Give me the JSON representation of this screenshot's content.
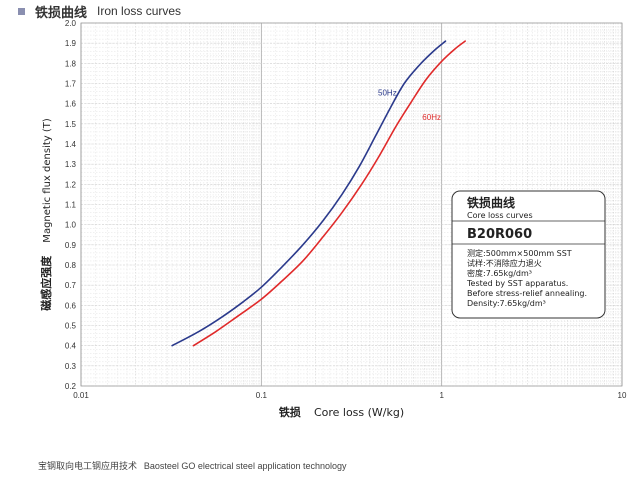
{
  "header": {
    "title_zh": "铁损曲线",
    "title_en": "Iron loss curves"
  },
  "footer": {
    "text_zh": "宝钢取向电工钢应用技术",
    "text_en": "Baosteel GO electrical steel application technology"
  },
  "chart_data": {
    "type": "line",
    "title": "铁损曲线 Iron loss curves",
    "xlabel_zh": "铁损",
    "xlabel_en": "Core loss (W/kg)",
    "ylabel_zh": "磁感应强度",
    "ylabel_en": "Magnetic flux density (T)",
    "x_scale": "log",
    "xlim": [
      0.01,
      10
    ],
    "ylim": [
      0.2,
      2.0
    ],
    "x_ticks": [
      0.01,
      0.1,
      1,
      10
    ],
    "x_tick_labels": [
      "0.01",
      "0.1",
      "1",
      "10"
    ],
    "y_ticks": [
      0.2,
      0.3,
      0.4,
      0.5,
      0.6,
      0.7,
      0.8,
      0.9,
      1.0,
      1.1,
      1.2,
      1.3,
      1.4,
      1.5,
      1.6,
      1.7,
      1.8,
      1.9,
      2.0
    ],
    "y_tick_labels": [
      "0.2",
      "0.3",
      "0.4",
      "0.5",
      "0.6",
      "0.7",
      "0.8",
      "0.9",
      "1.0",
      "1.1",
      "1.2",
      "1.3",
      "1.4",
      "1.5",
      "1.6",
      "1.7",
      "1.8",
      "1.9",
      "2.0"
    ],
    "grid": true,
    "series": [
      {
        "name": "50Hz",
        "color": "#2b3a8c",
        "x": [
          0.032,
          0.045,
          0.06,
          0.08,
          0.1,
          0.13,
          0.17,
          0.22,
          0.28,
          0.35,
          0.43,
          0.52,
          0.62,
          0.75,
          0.9,
          1.05
        ],
        "y": [
          0.4,
          0.47,
          0.54,
          0.62,
          0.69,
          0.79,
          0.9,
          1.02,
          1.15,
          1.29,
          1.44,
          1.58,
          1.7,
          1.79,
          1.86,
          1.91
        ]
      },
      {
        "name": "60Hz",
        "color": "#e02a2a",
        "x": [
          0.042,
          0.056,
          0.075,
          0.1,
          0.13,
          0.17,
          0.22,
          0.28,
          0.36,
          0.45,
          0.56,
          0.68,
          0.82,
          1.0,
          1.18,
          1.35
        ],
        "y": [
          0.4,
          0.47,
          0.55,
          0.63,
          0.72,
          0.82,
          0.94,
          1.06,
          1.2,
          1.34,
          1.49,
          1.61,
          1.72,
          1.81,
          1.87,
          1.91
        ]
      }
    ],
    "series_labels": [
      {
        "text": "50Hz",
        "x": 0.5,
        "y": 1.64,
        "color": "#2b3a8c"
      },
      {
        "text": "60Hz",
        "x": 0.88,
        "y": 1.52,
        "color": "#e02a2a"
      }
    ],
    "info_box": {
      "title_zh": "铁损曲线",
      "title_en": "Core loss curves",
      "grade": "B20R060",
      "lines": [
        "测定:500mm×500mm SST",
        "试样:不消除应力退火",
        "密度:7.65kg/dm³",
        "Tested by SST apparatus.",
        "Before stress-relief annealing.",
        "Density:7.65kg/dm³"
      ]
    }
  }
}
